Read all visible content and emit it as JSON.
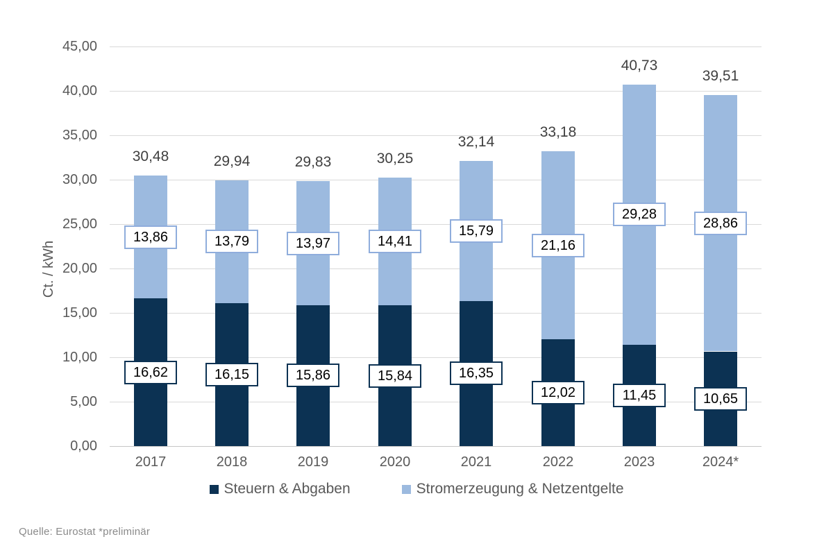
{
  "chart_data": {
    "type": "bar",
    "stacked": true,
    "title": "",
    "xlabel": "",
    "ylabel": "Ct. / kWh",
    "ylim": [
      0,
      45
    ],
    "ytick_step": 5,
    "decimal_style": "german-comma",
    "grid": true,
    "legend_position": "bottom",
    "categories": [
      "2017",
      "2018",
      "2019",
      "2020",
      "2021",
      "2022",
      "2023",
      "2024*"
    ],
    "series": [
      {
        "name": "Steuern & Abgaben",
        "color": "#0c3253",
        "label_border_color": "#0c3253",
        "values": [
          16.62,
          16.15,
          15.86,
          15.84,
          16.35,
          12.02,
          11.45,
          10.65
        ]
      },
      {
        "name": "Stromerzeugung & Netzentgelte",
        "color": "#9cbadf",
        "label_border_color": "#8faddc",
        "values": [
          13.86,
          13.79,
          13.97,
          14.41,
          15.79,
          21.16,
          29.28,
          28.86
        ]
      }
    ],
    "totals": [
      30.48,
      29.94,
      29.83,
      30.25,
      32.14,
      33.18,
      40.73,
      39.51
    ]
  },
  "colors": {
    "gridline": "#d9d9d9",
    "axis_line": "#c6c6c6",
    "tick_text": "#595959",
    "total_text": "#404040",
    "value_label_text": "#000000",
    "background": "#ffffff"
  },
  "source_note": "Quelle: Eurostat  *preliminär"
}
